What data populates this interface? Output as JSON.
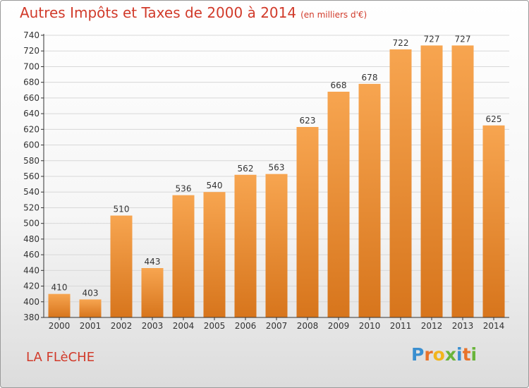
{
  "title": "Autres Impôts et Taxes de 2000 à 2014",
  "unit_label": "(en milliers d'€)",
  "city": "LA FLèCHE",
  "logo": {
    "text": "Proxiti",
    "letters": [
      {
        "char": "P",
        "color": "#3a8fd0"
      },
      {
        "char": "r",
        "color": "#e8722a"
      },
      {
        "char": "o",
        "color": "#f2b51c"
      },
      {
        "char": "x",
        "color": "#69b43a"
      },
      {
        "char": "i",
        "color": "#3a8fd0"
      },
      {
        "char": "t",
        "color": "#e8722a"
      },
      {
        "char": "i",
        "color": "#69b43a"
      }
    ]
  },
  "colors": {
    "title": "#d13a2a",
    "bar_top": "#f7a550",
    "bar_bottom": "#d7751c",
    "grid": "#d8d8d8",
    "axis": "#333333"
  },
  "chart_data": {
    "type": "bar",
    "title": "Autres Impôts et Taxes de 2000 à 2014",
    "categories": [
      "2000",
      "2001",
      "2002",
      "2003",
      "2004",
      "2005",
      "2006",
      "2007",
      "2008",
      "2009",
      "2010",
      "2011",
      "2012",
      "2013",
      "2014"
    ],
    "values": [
      410,
      403,
      510,
      443,
      536,
      540,
      562,
      563,
      623,
      668,
      678,
      722,
      727,
      727,
      625
    ],
    "ylim": [
      380,
      740
    ],
    "ytick_step": 20,
    "grid": true,
    "xlabel": "",
    "ylabel": ""
  }
}
